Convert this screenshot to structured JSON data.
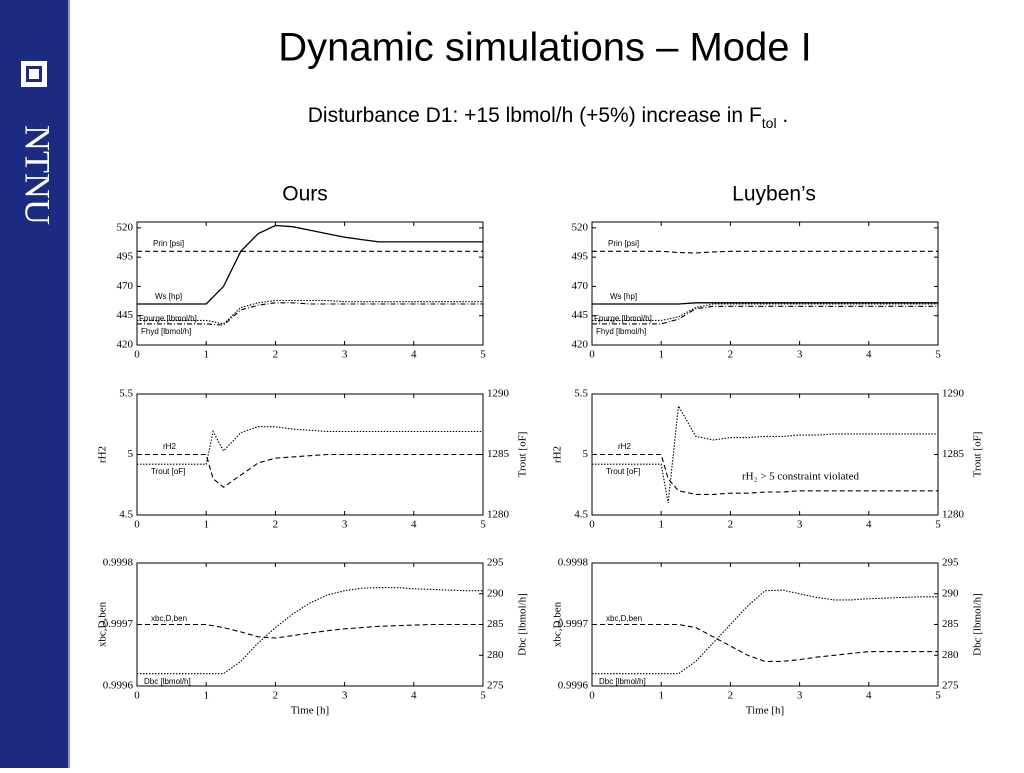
{
  "slide": {
    "logo": "NTNU",
    "title": "Dynamic simulations – Mode I",
    "subtitle": {
      "text": "Disturbance D1: +15 lbmol/h (+5%) increase in F",
      "subscript": "tol",
      "end": " ."
    },
    "columns": [
      "Ours",
      "Luyben’s"
    ]
  },
  "chart_data": [
    {
      "type": "line",
      "x": [
        0,
        0.25,
        0.5,
        0.75,
        1,
        1.25,
        1.5,
        1.75,
        2,
        2.25,
        2.5,
        2.75,
        3,
        3.25,
        3.5,
        3.75,
        4,
        4.25,
        4.5,
        4.75,
        5
      ],
      "xlim": [
        0,
        5
      ],
      "xticks": [
        0,
        1,
        2,
        3,
        4,
        5
      ],
      "ylim": [
        420,
        525
      ],
      "yticks": [
        420,
        445,
        470,
        495,
        520
      ],
      "series": [
        {
          "name": "Prin [psi]",
          "color": "#000",
          "dash": "dashed",
          "values": [
            500,
            500,
            500,
            500,
            500,
            500,
            500,
            500,
            500,
            500,
            500,
            500,
            500,
            500,
            500,
            500,
            500,
            500,
            500,
            500,
            500
          ]
        },
        {
          "name": "Ws [hp]",
          "color": "#000",
          "dash": "solid",
          "values": [
            455,
            455,
            455,
            455,
            455,
            470,
            500,
            515,
            522,
            521,
            518,
            515,
            512,
            510,
            508,
            508,
            508,
            508,
            508,
            508,
            508
          ]
        },
        {
          "name": "Fpurge [lbmol/h]",
          "color": "#000",
          "dash": "dotted",
          "values": [
            441,
            441,
            441,
            441,
            441,
            438,
            452,
            456,
            458,
            458,
            458,
            458,
            457,
            457,
            457,
            457,
            457,
            457,
            457,
            457,
            457
          ]
        },
        {
          "name": "Fhyd [lbmol/h]",
          "color": "#000",
          "dash": "dashdot",
          "values": [
            438,
            438,
            438,
            438,
            438,
            437,
            450,
            454,
            456,
            456,
            455,
            455,
            455,
            455,
            455,
            455,
            455,
            455,
            455,
            455,
            455
          ]
        }
      ]
    },
    {
      "type": "line",
      "x": [
        0,
        0.25,
        0.5,
        0.75,
        1,
        1.25,
        1.5,
        1.75,
        2,
        2.25,
        2.5,
        2.75,
        3,
        3.25,
        3.5,
        3.75,
        4,
        4.25,
        4.5,
        4.75,
        5
      ],
      "xlim": [
        0,
        5
      ],
      "xticks": [
        0,
        1,
        2,
        3,
        4,
        5
      ],
      "ylim": [
        420,
        525
      ],
      "yticks": [
        420,
        445,
        470,
        495,
        520
      ],
      "series": [
        {
          "name": "Prin [psi]",
          "color": "#000",
          "dash": "dashed",
          "values": [
            500,
            500,
            500,
            500,
            500,
            499,
            498.5,
            499.5,
            500,
            500,
            500,
            500,
            500,
            500,
            500,
            500,
            500,
            500,
            500,
            500,
            500
          ]
        },
        {
          "name": "Ws [hp]",
          "color": "#000",
          "dash": "solid",
          "values": [
            455,
            455,
            455,
            455,
            455,
            455,
            456,
            456,
            456,
            456,
            456,
            456,
            456,
            456,
            456,
            456,
            456,
            456,
            456,
            456,
            456
          ]
        },
        {
          "name": "Fpurge [lbmol/h]",
          "color": "#000",
          "dash": "dotted",
          "values": [
            441,
            441,
            441,
            441,
            441,
            444,
            452,
            455,
            455,
            455,
            455,
            455,
            455,
            455,
            455,
            455,
            455,
            455,
            455,
            455,
            455
          ]
        },
        {
          "name": "Fhyd [lbmol/h]",
          "color": "#000",
          "dash": "dashdot",
          "values": [
            438,
            438,
            438,
            438,
            438,
            442,
            451,
            453,
            453,
            453,
            453,
            453,
            453,
            453,
            453,
            453,
            453,
            453,
            453,
            453,
            453
          ]
        }
      ]
    },
    {
      "type": "line",
      "x": [
        0,
        0.25,
        0.5,
        0.75,
        1,
        1.1,
        1.25,
        1.5,
        1.75,
        2,
        2.25,
        2.5,
        2.75,
        3,
        3.25,
        3.5,
        3.75,
        4,
        4.25,
        4.5,
        4.75,
        5
      ],
      "xlim": [
        0,
        5
      ],
      "xticks": [
        0,
        1,
        2,
        3,
        4,
        5
      ],
      "ylim": [
        4.5,
        5.5
      ],
      "yticks": [
        4.5,
        5,
        5.5
      ],
      "ylabel": "rH2",
      "y2lim": [
        1280,
        1290
      ],
      "y2ticks": [
        1280,
        1285,
        1290
      ],
      "y2label": "Trout [oF]",
      "series": [
        {
          "name": "rH2",
          "color": "#000",
          "dash": "dashed",
          "values": [
            5,
            5,
            5,
            5,
            5,
            4.8,
            4.73,
            4.83,
            4.93,
            4.97,
            4.98,
            4.99,
            5,
            5,
            5,
            5,
            5,
            5,
            5,
            5,
            5,
            5
          ]
        },
        {
          "name": "Trout [oF]",
          "color": "#000",
          "dash": "dotted",
          "axis": "y2",
          "values": [
            1284.2,
            1284.2,
            1284.2,
            1284.2,
            1284.2,
            1286.9,
            1285.3,
            1286.8,
            1287.3,
            1287.3,
            1287.1,
            1287,
            1286.9,
            1286.9,
            1286.9,
            1286.9,
            1286.9,
            1286.9,
            1286.9,
            1286.9,
            1286.9,
            1286.9
          ]
        }
      ]
    },
    {
      "type": "line",
      "x": [
        0,
        0.25,
        0.5,
        0.75,
        1,
        1.1,
        1.25,
        1.5,
        1.75,
        2,
        2.25,
        2.5,
        2.75,
        3,
        3.25,
        3.5,
        3.75,
        4,
        4.25,
        4.5,
        4.75,
        5
      ],
      "xlim": [
        0,
        5
      ],
      "xticks": [
        0,
        1,
        2,
        3,
        4,
        5
      ],
      "ylim": [
        4.5,
        5.5
      ],
      "yticks": [
        4.5,
        5,
        5.5
      ],
      "ylabel": "rH2",
      "y2lim": [
        1280,
        1290
      ],
      "y2ticks": [
        1280,
        1285,
        1290
      ],
      "y2label": "Trout [oF]",
      "annotation": "rH₂ > 5 constraint violated",
      "series": [
        {
          "name": "rH2",
          "color": "#000",
          "dash": "dashed",
          "values": [
            5,
            5,
            5,
            5,
            5,
            4.8,
            4.7,
            4.67,
            4.67,
            4.68,
            4.68,
            4.69,
            4.69,
            4.7,
            4.7,
            4.7,
            4.7,
            4.7,
            4.7,
            4.7,
            4.7,
            4.7
          ]
        },
        {
          "name": "Trout [oF]",
          "color": "#000",
          "dash": "dotted",
          "axis": "y2",
          "values": [
            1284.2,
            1284.2,
            1284.2,
            1284.2,
            1284.2,
            1281,
            1289,
            1286.5,
            1286.2,
            1286.4,
            1286.4,
            1286.5,
            1286.5,
            1286.6,
            1286.6,
            1286.7,
            1286.7,
            1286.7,
            1286.7,
            1286.7,
            1286.7,
            1286.7
          ]
        }
      ]
    },
    {
      "type": "line",
      "x": [
        0,
        0.25,
        0.5,
        0.75,
        1,
        1.25,
        1.5,
        1.75,
        2,
        2.25,
        2.5,
        2.75,
        3,
        3.25,
        3.5,
        3.75,
        4,
        4.25,
        4.5,
        4.75,
        5
      ],
      "xlim": [
        0,
        5
      ],
      "xticks": [
        0,
        1,
        2,
        3,
        4,
        5
      ],
      "ylim": [
        0.9996,
        0.9998
      ],
      "yticks": [
        0.9996,
        0.9997,
        0.9998
      ],
      "ylabel": "xbc,D,ben",
      "y2lim": [
        275,
        295
      ],
      "y2ticks": [
        275,
        280,
        285,
        290,
        295
      ],
      "y2label": "Dbc [lbmol/h]",
      "xlabel": "Time [h]",
      "series": [
        {
          "name": "xbc,D,ben",
          "color": "#000",
          "dash": "dashed",
          "values": [
            0.9997,
            0.9997,
            0.9997,
            0.9997,
            0.9997,
            0.999695,
            0.999688,
            0.99968,
            0.999678,
            0.999682,
            0.999686,
            0.99969,
            0.999693,
            0.999695,
            0.999697,
            0.999698,
            0.999699,
            0.9997,
            0.9997,
            0.9997,
            0.9997
          ]
        },
        {
          "name": "Dbc [lbmol/h]",
          "color": "#000",
          "dash": "dotted",
          "axis": "y2",
          "values": [
            277,
            277,
            277,
            277,
            277,
            277,
            279,
            282,
            284.5,
            286.7,
            288.5,
            289.8,
            290.5,
            290.9,
            291,
            291,
            290.8,
            290.7,
            290.6,
            290.5,
            290.5
          ]
        }
      ]
    },
    {
      "type": "line",
      "x": [
        0,
        0.25,
        0.5,
        0.75,
        1,
        1.25,
        1.5,
        1.75,
        2,
        2.25,
        2.5,
        2.75,
        3,
        3.25,
        3.5,
        3.75,
        4,
        4.25,
        4.5,
        4.75,
        5
      ],
      "xlim": [
        0,
        5
      ],
      "xticks": [
        0,
        1,
        2,
        3,
        4,
        5
      ],
      "ylim": [
        0.9996,
        0.9998
      ],
      "yticks": [
        0.9996,
        0.9997,
        0.9998
      ],
      "ylabel": "xbc,D,ben",
      "y2lim": [
        275,
        295
      ],
      "y2ticks": [
        275,
        280,
        285,
        290,
        295
      ],
      "y2label": "Dbc [lbmol/h]",
      "xlabel": "Time [h]",
      "series": [
        {
          "name": "xbc,D,ben",
          "color": "#000",
          "dash": "dashed",
          "values": [
            0.9997,
            0.9997,
            0.9997,
            0.9997,
            0.9997,
            0.9997,
            0.999695,
            0.99968,
            0.999665,
            0.99965,
            0.99964,
            0.99964,
            0.999643,
            0.999647,
            0.99965,
            0.999653,
            0.999656,
            0.999656,
            0.999656,
            0.999656,
            0.999656
          ]
        },
        {
          "name": "Dbc [lbmol/h]",
          "color": "#000",
          "dash": "dotted",
          "axis": "y2",
          "values": [
            277,
            277,
            277,
            277,
            277,
            277,
            279,
            282,
            285,
            288,
            290.5,
            290.6,
            290,
            289.4,
            289,
            289,
            289.2,
            289.3,
            289.4,
            289.5,
            289.5
          ]
        }
      ]
    }
  ]
}
